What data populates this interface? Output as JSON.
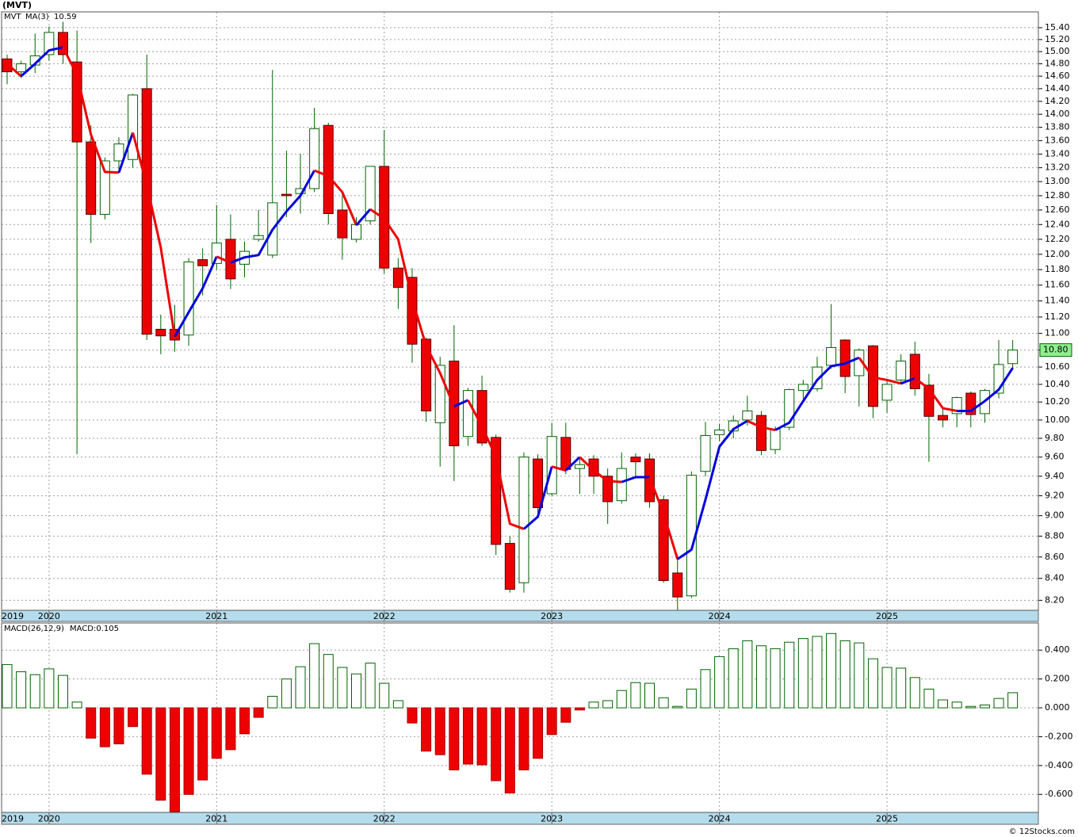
{
  "chart_data": [
    {
      "type": "candlestick",
      "title": "(MVT)",
      "log": true,
      "grid": true,
      "categories": [
        "2019",
        null,
        null,
        "2020",
        null,
        null,
        null,
        null,
        null,
        null,
        null,
        null,
        null,
        null,
        null,
        "2021",
        null,
        null,
        null,
        null,
        null,
        null,
        null,
        null,
        null,
        null,
        null,
        "2022",
        null,
        null,
        null,
        null,
        null,
        null,
        null,
        null,
        null,
        null,
        null,
        "2023",
        null,
        null,
        null,
        null,
        null,
        null,
        null,
        null,
        null,
        null,
        null,
        "2024",
        null,
        null,
        null,
        null,
        null,
        null,
        null,
        null,
        null,
        null,
        null,
        "2025",
        null,
        null,
        null,
        null,
        null,
        null,
        null,
        null,
        null
      ],
      "ylim": [
        8.11,
        15.67
      ],
      "yticks": [
        {
          "value": 8.2,
          "label": "8.20"
        },
        {
          "value": 8.4,
          "label": "8.40"
        },
        {
          "value": 8.6,
          "label": "8.60"
        },
        {
          "value": 8.8,
          "label": "8.80"
        },
        {
          "value": 9.0,
          "label": "9.00"
        },
        {
          "value": 9.2,
          "label": "9.20"
        },
        {
          "value": 9.4,
          "label": "9.40"
        },
        {
          "value": 9.6,
          "label": "9.60"
        },
        {
          "value": 9.8,
          "label": "9.80"
        },
        {
          "value": 10.0,
          "label": "10.00"
        },
        {
          "value": 10.2,
          "label": "10.20"
        },
        {
          "value": 10.4,
          "label": "10.40"
        },
        {
          "value": 10.6,
          "label": "10.60"
        },
        {
          "value": 10.8,
          "label": "10.80"
        },
        {
          "value": 11.0,
          "label": "11.00"
        },
        {
          "value": 11.2,
          "label": "11.20"
        },
        {
          "value": 11.4,
          "label": "11.40"
        },
        {
          "value": 11.6,
          "label": "11.60"
        },
        {
          "value": 11.8,
          "label": "11.80"
        },
        {
          "value": 12.0,
          "label": "12.00"
        },
        {
          "value": 12.2,
          "label": "12.20"
        },
        {
          "value": 12.4,
          "label": "12.40"
        },
        {
          "value": 12.6,
          "label": "12.60"
        },
        {
          "value": 12.8,
          "label": "12.80"
        },
        {
          "value": 13.0,
          "label": "13.00"
        },
        {
          "value": 13.2,
          "label": "13.20"
        },
        {
          "value": 13.4,
          "label": "13.40"
        },
        {
          "value": 13.6,
          "label": "13.60"
        },
        {
          "value": 13.8,
          "label": "13.80"
        },
        {
          "value": 14.0,
          "label": "14.00"
        },
        {
          "value": 14.2,
          "label": "14.20"
        },
        {
          "value": 14.4,
          "label": "14.40"
        },
        {
          "value": 14.6,
          "label": "14.60"
        },
        {
          "value": 14.8,
          "label": "14.80"
        },
        {
          "value": 15.0,
          "label": "15.00"
        },
        {
          "value": 15.2,
          "label": "15.20"
        },
        {
          "value": 15.4,
          "label": "15.40"
        }
      ],
      "series": [
        {
          "name": "MVT",
          "color": "#006400",
          "down_color": "#ee0000",
          "last_label": "10.80",
          "open": [
            14.88,
            14.67,
            14.78,
            14.95,
            15.32,
            14.83,
            13.58,
            12.54,
            13.3,
            13.32,
            14.4,
            11.05,
            11.05,
            10.98,
            11.93,
            11.88,
            12.2,
            11.87,
            12.2,
            11.99,
            12.82,
            12.83,
            12.9,
            13.83,
            12.6,
            12.2,
            12.45,
            13.22,
            11.82,
            11.7,
            10.93,
            9.97,
            10.67,
            9.82,
            10.33,
            9.81,
            8.73,
            8.36,
            9.58,
            9.22,
            9.81,
            9.48,
            9.58,
            9.4,
            9.15,
            9.6,
            9.58,
            9.16,
            8.45,
            8.24,
            9.45,
            9.84,
            9.88,
            10.0,
            10.05,
            9.68,
            9.92,
            10.33,
            10.35,
            10.62,
            10.92,
            10.5,
            10.85,
            10.22,
            10.45,
            10.75,
            10.39,
            10.05,
            10.07,
            10.3,
            10.07,
            10.3,
            10.64
          ],
          "high": [
            14.95,
            14.85,
            15.3,
            15.42,
            15.5,
            15.35,
            13.83,
            13.35,
            13.65,
            14.32,
            14.95,
            11.23,
            11.35,
            11.95,
            12.08,
            12.67,
            12.54,
            12.17,
            12.6,
            14.7,
            13.45,
            13.4,
            14.1,
            13.87,
            12.82,
            12.5,
            13.22,
            13.76,
            11.95,
            11.82,
            10.95,
            10.72,
            11.1,
            10.36,
            10.5,
            9.84,
            8.8,
            9.65,
            9.63,
            9.97,
            9.97,
            9.58,
            9.62,
            9.48,
            9.65,
            9.64,
            9.64,
            9.2,
            8.62,
            9.45,
            9.98,
            9.96,
            10.05,
            10.27,
            10.1,
            9.93,
            10.35,
            10.45,
            10.72,
            11.36,
            10.93,
            10.82,
            10.86,
            10.44,
            10.75,
            10.9,
            10.52,
            10.13,
            10.26,
            10.32,
            10.35,
            10.92,
            10.92
          ],
          "low": [
            14.47,
            14.57,
            14.65,
            14.85,
            14.8,
            9.63,
            12.15,
            12.47,
            13.17,
            13.2,
            10.92,
            10.75,
            10.78,
            10.85,
            11.47,
            11.8,
            11.55,
            11.7,
            12.17,
            11.95,
            12.5,
            12.55,
            12.85,
            12.4,
            11.93,
            12.16,
            12.4,
            11.75,
            11.3,
            10.65,
            9.98,
            9.5,
            9.35,
            9.72,
            9.72,
            8.62,
            8.27,
            8.27,
            9.02,
            9.2,
            9.42,
            9.22,
            9.22,
            8.92,
            9.12,
            9.4,
            9.08,
            8.36,
            8.11,
            8.22,
            9.4,
            9.77,
            9.8,
            9.94,
            9.62,
            9.63,
            9.89,
            10.23,
            10.32,
            10.58,
            10.3,
            10.15,
            10.02,
            10.08,
            10.4,
            10.27,
            9.55,
            9.92,
            9.92,
            9.92,
            9.97,
            10.24,
            10.57
          ],
          "close": [
            14.67,
            14.8,
            14.93,
            15.32,
            14.95,
            13.58,
            12.54,
            13.3,
            13.55,
            14.3,
            10.99,
            10.97,
            10.92,
            11.9,
            11.85,
            12.15,
            11.68,
            12.04,
            12.25,
            12.7,
            12.8,
            12.9,
            13.78,
            12.55,
            12.22,
            12.4,
            13.22,
            11.82,
            11.57,
            10.87,
            10.1,
            10.62,
            9.72,
            10.33,
            9.75,
            8.72,
            8.3,
            9.6,
            9.08,
            9.82,
            9.47,
            9.52,
            9.4,
            9.14,
            9.48,
            9.55,
            9.14,
            8.38,
            8.23,
            9.41,
            9.83,
            9.89,
            9.99,
            10.1,
            9.67,
            9.9,
            10.34,
            10.4,
            10.6,
            10.83,
            10.49,
            10.8,
            10.15,
            10.4,
            10.67,
            10.35,
            10.04,
            10.0,
            10.25,
            10.06,
            10.33,
            10.63,
            10.8
          ]
        },
        {
          "name": "MA(3)",
          "color": "#0000dd",
          "down_color": "#ee0000",
          "values": [
            14.8,
            14.6,
            14.8,
            15.02,
            15.07,
            14.62,
            13.69,
            13.14,
            13.13,
            13.72,
            12.95,
            12.09,
            10.96,
            11.26,
            11.56,
            11.97,
            11.89,
            11.96,
            11.99,
            12.33,
            12.58,
            12.8,
            13.16,
            13.08,
            12.85,
            12.39,
            12.61,
            12.48,
            12.2,
            11.42,
            10.85,
            10.53,
            10.15,
            10.22,
            9.93,
            9.6,
            8.92,
            8.87,
            8.99,
            9.5,
            9.46,
            9.6,
            9.46,
            9.35,
            9.34,
            9.39,
            9.39,
            9.02,
            8.58,
            8.67,
            9.16,
            9.71,
            9.9,
            9.99,
            9.92,
            9.89,
            9.97,
            10.21,
            10.45,
            10.61,
            10.64,
            10.71,
            10.48,
            10.45,
            10.41,
            10.47,
            10.35,
            10.13,
            10.1,
            10.1,
            10.21,
            10.34,
            10.59
          ]
        }
      ]
    },
    {
      "type": "bar",
      "grid": true,
      "categories": [
        "2019",
        null,
        null,
        "2020",
        null,
        null,
        null,
        null,
        null,
        null,
        null,
        null,
        null,
        null,
        null,
        "2021",
        null,
        null,
        null,
        null,
        null,
        null,
        null,
        null,
        null,
        null,
        null,
        "2022",
        null,
        null,
        null,
        null,
        null,
        null,
        null,
        null,
        null,
        null,
        null,
        "2023",
        null,
        null,
        null,
        null,
        null,
        null,
        null,
        null,
        null,
        null,
        null,
        "2024",
        null,
        null,
        null,
        null,
        null,
        null,
        null,
        null,
        null,
        null,
        null,
        "2025",
        null,
        null,
        null,
        null,
        null,
        null,
        null,
        null,
        null
      ],
      "ylim": [
        -0.725,
        0.588
      ],
      "yticks": [
        {
          "value": 0.4,
          "label": "0.400"
        },
        {
          "value": 0.2,
          "label": "0.200"
        },
        {
          "value": 0,
          "label": "0.000"
        },
        {
          "value": -0.2,
          "label": "-0.200"
        },
        {
          "value": -0.4,
          "label": "-0.400"
        },
        {
          "value": -0.6,
          "label": "-0.600"
        }
      ],
      "series": [
        {
          "name": "MACD(26,12,9)",
          "value_label": "MACD:0.105",
          "color": "#006400",
          "down_color": "#ee0000",
          "values": [
            0.3,
            0.25,
            0.23,
            0.27,
            0.225,
            0.04,
            -0.21,
            -0.27,
            -0.25,
            -0.13,
            -0.46,
            -0.64,
            -0.72,
            -0.6,
            -0.5,
            -0.35,
            -0.29,
            -0.18,
            -0.066,
            0.08,
            0.2,
            0.285,
            0.445,
            0.37,
            0.28,
            0.235,
            0.31,
            0.17,
            0.05,
            -0.105,
            -0.3,
            -0.325,
            -0.43,
            -0.39,
            -0.395,
            -0.505,
            -0.59,
            -0.43,
            -0.35,
            -0.185,
            -0.1,
            -0.015,
            0.04,
            0.05,
            0.12,
            0.175,
            0.17,
            0.07,
            0.01,
            0.13,
            0.265,
            0.355,
            0.41,
            0.465,
            0.43,
            0.41,
            0.455,
            0.48,
            0.495,
            0.515,
            0.465,
            0.45,
            0.34,
            0.28,
            0.275,
            0.21,
            0.13,
            0.055,
            0.04,
            0.01,
            0.02,
            0.065,
            0.105
          ]
        }
      ]
    }
  ],
  "footer": "© 12Stocks.com"
}
